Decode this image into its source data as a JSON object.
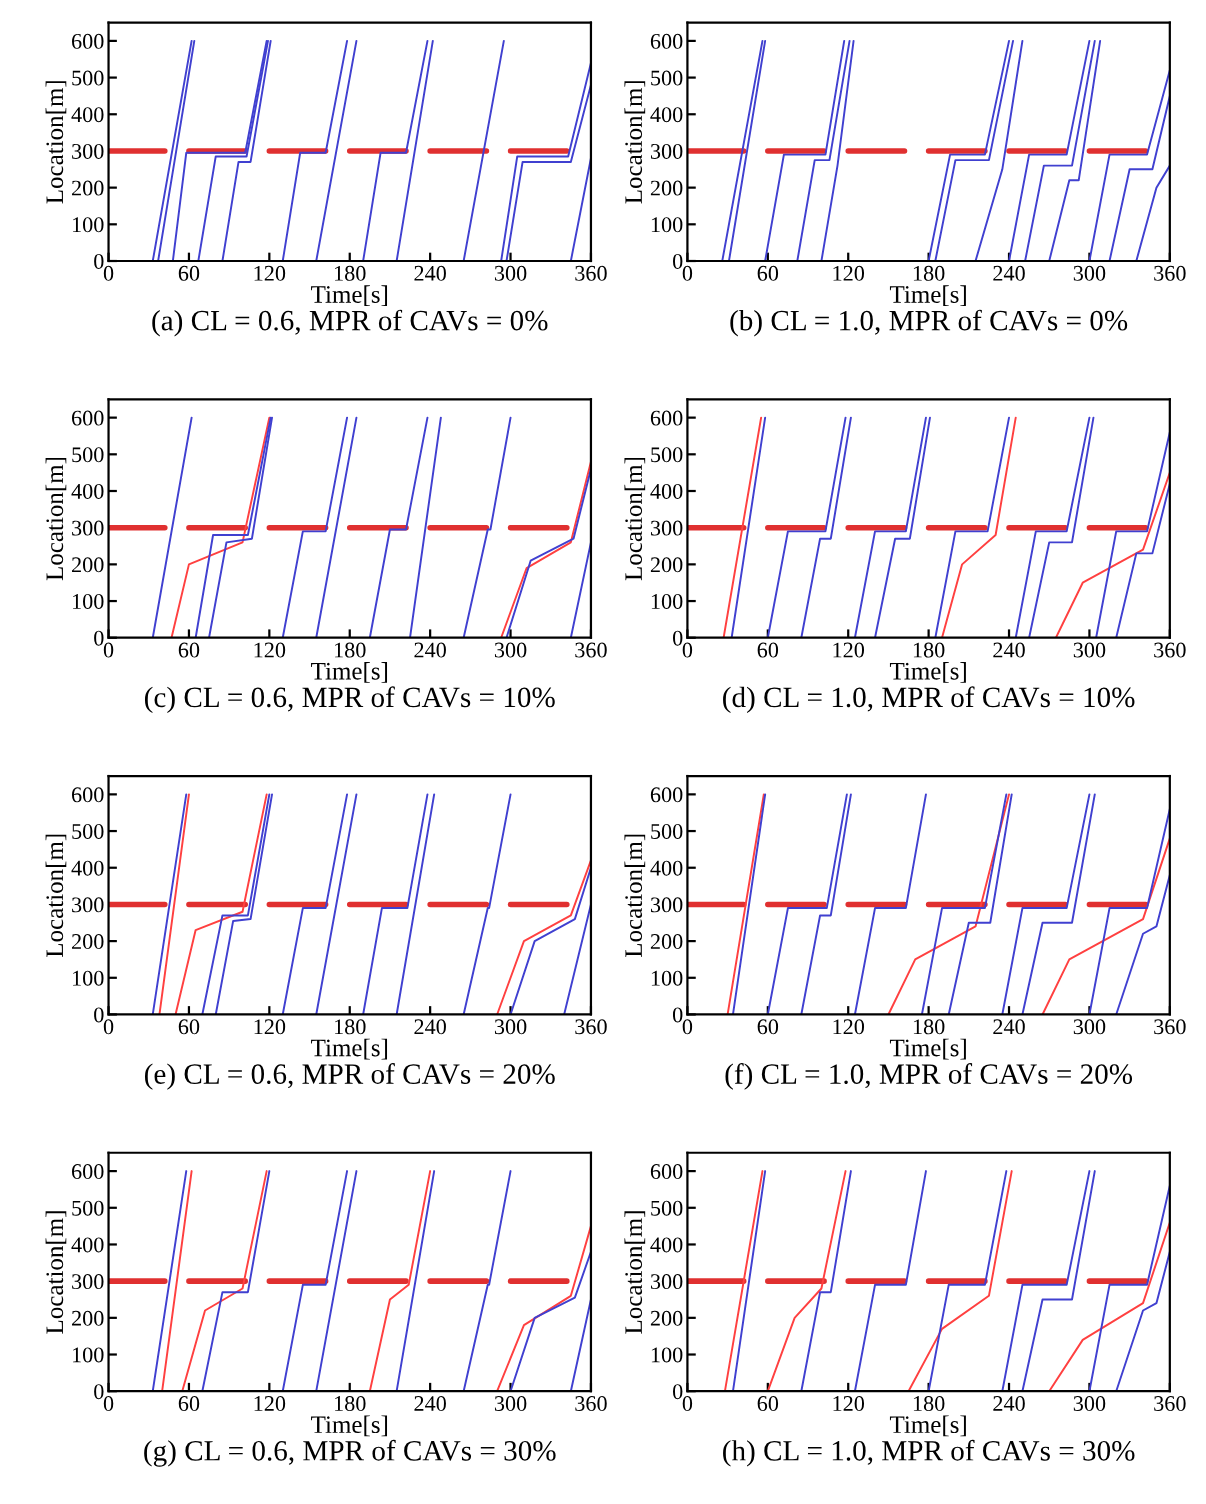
{
  "chart_data": [
    {
      "type": "line",
      "title": "(a) CL = 0.6, MPR of CAVs = 0%",
      "xlabel": "Time[s]",
      "ylabel": "Location[m]",
      "xlim": [
        0,
        360
      ],
      "xticks": [
        0,
        60,
        120,
        180,
        240,
        300,
        360
      ],
      "ylim": [
        0,
        650
      ],
      "yticks": [
        0,
        100,
        200,
        300,
        400,
        500,
        600
      ],
      "series": [
        {
          "color": "#e03030",
          "x": [
            0,
            42,
            51,
            60,
            102,
            111,
            120,
            162,
            171,
            180,
            222,
            231,
            240,
            282,
            291,
            300,
            342
          ],
          "values": [
            300,
            300,
            null,
            300,
            300,
            null,
            300,
            300,
            null,
            300,
            300,
            null,
            300,
            300,
            null,
            300,
            300
          ]
        },
        {
          "color": "#4040d0",
          "x": [
            33,
            62
          ],
          "values": [
            0,
            600
          ]
        },
        {
          "color": "#4040d0",
          "x": [
            37,
            64
          ],
          "values": [
            0,
            600
          ]
        },
        {
          "color": "#4040d0",
          "x": [
            48,
            58,
            102,
            118
          ],
          "values": [
            0,
            295,
            295,
            600
          ]
        },
        {
          "color": "#4040d0",
          "x": [
            67,
            80,
            103,
            119
          ],
          "values": [
            0,
            285,
            285,
            600
          ]
        },
        {
          "color": "#4040d0",
          "x": [
            85,
            97,
            106,
            121
          ],
          "values": [
            0,
            270,
            270,
            600
          ]
        },
        {
          "color": "#4040d0",
          "x": [
            130,
            143,
            162,
            178
          ],
          "values": [
            0,
            295,
            295,
            600
          ]
        },
        {
          "color": "#4040d0",
          "x": [
            155,
            185
          ],
          "values": [
            0,
            600
          ]
        },
        {
          "color": "#4040d0",
          "x": [
            190,
            203,
            222,
            238
          ],
          "values": [
            0,
            295,
            295,
            600
          ]
        },
        {
          "color": "#4040d0",
          "x": [
            215,
            242
          ],
          "values": [
            0,
            600
          ]
        },
        {
          "color": "#4040d0",
          "x": [
            265,
            295
          ],
          "values": [
            0,
            600
          ]
        },
        {
          "color": "#4040d0",
          "x": [
            293,
            305,
            343,
            360
          ],
          "values": [
            0,
            285,
            285,
            540
          ]
        },
        {
          "color": "#4040d0",
          "x": [
            297,
            309,
            345,
            360
          ],
          "values": [
            0,
            270,
            270,
            480
          ]
        },
        {
          "color": "#4040d0",
          "x": [
            345,
            360
          ],
          "values": [
            0,
            280
          ]
        }
      ]
    },
    {
      "type": "line",
      "title": "(b) CL = 1.0, MPR of CAVs = 0%",
      "xlabel": "Time[s]",
      "ylabel": "Location[m]",
      "xlim": [
        0,
        360
      ],
      "xticks": [
        0,
        60,
        120,
        180,
        240,
        300,
        360
      ],
      "ylim": [
        0,
        650
      ],
      "yticks": [
        0,
        100,
        200,
        300,
        400,
        500,
        600
      ],
      "series": [
        {
          "color": "#e03030",
          "x": [
            0,
            42,
            51,
            60,
            102,
            111,
            120,
            162,
            171,
            180,
            222,
            231,
            240,
            282,
            291,
            300,
            342
          ],
          "values": [
            300,
            300,
            null,
            300,
            300,
            null,
            300,
            300,
            null,
            300,
            300,
            null,
            300,
            300,
            null,
            300,
            300
          ]
        },
        {
          "color": "#4040d0",
          "x": [
            26,
            56
          ],
          "values": [
            0,
            600
          ]
        },
        {
          "color": "#4040d0",
          "x": [
            31,
            58
          ],
          "values": [
            0,
            600
          ]
        },
        {
          "color": "#4040d0",
          "x": [
            58,
            72,
            103,
            117
          ],
          "values": [
            0,
            290,
            290,
            600
          ]
        },
        {
          "color": "#4040d0",
          "x": [
            82,
            95,
            106,
            121
          ],
          "values": [
            0,
            275,
            275,
            600
          ]
        },
        {
          "color": "#4040d0",
          "x": [
            100,
            112,
            124
          ],
          "values": [
            0,
            260,
            600
          ]
        },
        {
          "color": "#4040d0",
          "x": [
            180,
            196,
            222,
            240
          ],
          "values": [
            0,
            290,
            290,
            600
          ]
        },
        {
          "color": "#4040d0",
          "x": [
            185,
            200,
            225,
            243
          ],
          "values": [
            0,
            275,
            275,
            600
          ]
        },
        {
          "color": "#4040d0",
          "x": [
            215,
            235,
            250
          ],
          "values": [
            0,
            250,
            600
          ]
        },
        {
          "color": "#4040d0",
          "x": [
            240,
            255,
            283,
            300
          ],
          "values": [
            0,
            290,
            290,
            600
          ]
        },
        {
          "color": "#4040d0",
          "x": [
            252,
            266,
            287,
            304
          ],
          "values": [
            0,
            260,
            260,
            600
          ]
        },
        {
          "color": "#4040d0",
          "x": [
            270,
            285,
            292,
            308
          ],
          "values": [
            0,
            220,
            220,
            600
          ]
        },
        {
          "color": "#4040d0",
          "x": [
            300,
            315,
            343,
            360
          ],
          "values": [
            0,
            290,
            290,
            520
          ]
        },
        {
          "color": "#4040d0",
          "x": [
            315,
            330,
            347,
            360
          ],
          "values": [
            0,
            250,
            250,
            450
          ]
        },
        {
          "color": "#4040d0",
          "x": [
            335,
            350,
            360
          ],
          "values": [
            0,
            200,
            260
          ]
        }
      ]
    },
    {
      "type": "line",
      "title": "(c) CL = 0.6, MPR of CAVs = 10%",
      "xlabel": "Time[s]",
      "ylabel": "Location[m]",
      "xlim": [
        0,
        360
      ],
      "xticks": [
        0,
        60,
        120,
        180,
        240,
        300,
        360
      ],
      "ylim": [
        0,
        650
      ],
      "yticks": [
        0,
        100,
        200,
        300,
        400,
        500,
        600
      ],
      "series": [
        {
          "color": "#e03030",
          "x": [
            0,
            42,
            51,
            60,
            102,
            111,
            120,
            162,
            171,
            180,
            222,
            231,
            240,
            282,
            291,
            300,
            342
          ],
          "values": [
            300,
            300,
            null,
            300,
            300,
            null,
            300,
            300,
            null,
            300,
            300,
            null,
            300,
            300,
            null,
            300,
            300
          ]
        },
        {
          "color": "#ff4040",
          "x": [
            47,
            60,
            100,
            120
          ],
          "values": [
            0,
            200,
            260,
            600
          ]
        },
        {
          "color": "#ff4040",
          "x": [
            293,
            312,
            345,
            360
          ],
          "values": [
            0,
            190,
            260,
            480
          ]
        },
        {
          "color": "#4040d0",
          "x": [
            33,
            62
          ],
          "values": [
            0,
            600
          ]
        },
        {
          "color": "#4040d0",
          "x": [
            65,
            78,
            104,
            121
          ],
          "values": [
            0,
            280,
            280,
            600
          ]
        },
        {
          "color": "#4040d0",
          "x": [
            75,
            88,
            107,
            122
          ],
          "values": [
            0,
            260,
            270,
            600
          ]
        },
        {
          "color": "#4040d0",
          "x": [
            130,
            145,
            162,
            178
          ],
          "values": [
            0,
            290,
            290,
            600
          ]
        },
        {
          "color": "#4040d0",
          "x": [
            155,
            185
          ],
          "values": [
            0,
            600
          ]
        },
        {
          "color": "#4040d0",
          "x": [
            195,
            210,
            222,
            238
          ],
          "values": [
            0,
            295,
            295,
            600
          ]
        },
        {
          "color": "#4040d0",
          "x": [
            225,
            248
          ],
          "values": [
            0,
            600
          ]
        },
        {
          "color": "#4040d0",
          "x": [
            265,
            283,
            285,
            300
          ],
          "values": [
            0,
            295,
            295,
            600
          ]
        },
        {
          "color": "#4040d0",
          "x": [
            297,
            315,
            347,
            360
          ],
          "values": [
            0,
            210,
            270,
            460
          ]
        },
        {
          "color": "#4040d0",
          "x": [
            345,
            360
          ],
          "values": [
            0,
            260
          ]
        }
      ]
    },
    {
      "type": "line",
      "title": "(d) CL = 1.0, MPR of CAVs = 10%",
      "xlabel": "Time[s]",
      "ylabel": "Location[m]",
      "xlim": [
        0,
        360
      ],
      "xticks": [
        0,
        60,
        120,
        180,
        240,
        300,
        360
      ],
      "ylim": [
        0,
        650
      ],
      "yticks": [
        0,
        100,
        200,
        300,
        400,
        500,
        600
      ],
      "series": [
        {
          "color": "#e03030",
          "x": [
            0,
            42,
            51,
            60,
            102,
            111,
            120,
            162,
            171,
            180,
            222,
            231,
            240,
            282,
            291,
            300,
            342
          ],
          "values": [
            300,
            300,
            null,
            300,
            300,
            null,
            300,
            300,
            null,
            300,
            300,
            null,
            300,
            300,
            null,
            300,
            300
          ]
        },
        {
          "color": "#ff4040",
          "x": [
            27,
            55
          ],
          "values": [
            0,
            600
          ]
        },
        {
          "color": "#ff4040",
          "x": [
            190,
            205,
            230,
            245
          ],
          "values": [
            0,
            200,
            280,
            600
          ]
        },
        {
          "color": "#ff4040",
          "x": [
            275,
            295,
            340,
            360
          ],
          "values": [
            0,
            150,
            240,
            450
          ]
        },
        {
          "color": "#4040d0",
          "x": [
            33,
            58
          ],
          "values": [
            0,
            600
          ]
        },
        {
          "color": "#4040d0",
          "x": [
            60,
            75,
            103,
            118
          ],
          "values": [
            0,
            290,
            290,
            600
          ]
        },
        {
          "color": "#4040d0",
          "x": [
            85,
            99,
            107,
            122
          ],
          "values": [
            0,
            270,
            270,
            600
          ]
        },
        {
          "color": "#4040d0",
          "x": [
            125,
            140,
            163,
            178
          ],
          "values": [
            0,
            290,
            290,
            600
          ]
        },
        {
          "color": "#4040d0",
          "x": [
            140,
            155,
            166,
            181
          ],
          "values": [
            0,
            270,
            270,
            600
          ]
        },
        {
          "color": "#4040d0",
          "x": [
            185,
            200,
            224,
            240
          ],
          "values": [
            0,
            290,
            290,
            600
          ]
        },
        {
          "color": "#4040d0",
          "x": [
            245,
            260,
            283,
            300
          ],
          "values": [
            0,
            290,
            290,
            600
          ]
        },
        {
          "color": "#4040d0",
          "x": [
            255,
            270,
            287,
            303
          ],
          "values": [
            0,
            260,
            260,
            600
          ]
        },
        {
          "color": "#4040d0",
          "x": [
            305,
            320,
            343,
            360
          ],
          "values": [
            0,
            290,
            290,
            560
          ]
        },
        {
          "color": "#4040d0",
          "x": [
            320,
            335,
            347,
            360
          ],
          "values": [
            0,
            230,
            230,
            420
          ]
        }
      ]
    },
    {
      "type": "line",
      "title": "(e) CL = 0.6, MPR of CAVs = 20%",
      "xlabel": "Time[s]",
      "ylabel": "Location[m]",
      "xlim": [
        0,
        360
      ],
      "xticks": [
        0,
        60,
        120,
        180,
        240,
        300,
        360
      ],
      "ylim": [
        0,
        650
      ],
      "yticks": [
        0,
        100,
        200,
        300,
        400,
        500,
        600
      ],
      "series": [
        {
          "color": "#e03030",
          "x": [
            0,
            42,
            51,
            60,
            102,
            111,
            120,
            162,
            171,
            180,
            222,
            231,
            240,
            282,
            291,
            300,
            342
          ],
          "values": [
            300,
            300,
            null,
            300,
            300,
            null,
            300,
            300,
            null,
            300,
            300,
            null,
            300,
            300,
            null,
            300,
            300
          ]
        },
        {
          "color": "#ff4040",
          "x": [
            38,
            60
          ],
          "values": [
            0,
            600
          ]
        },
        {
          "color": "#ff4040",
          "x": [
            50,
            65,
            100,
            118
          ],
          "values": [
            0,
            230,
            280,
            600
          ]
        },
        {
          "color": "#ff4040",
          "x": [
            290,
            310,
            345,
            360
          ],
          "values": [
            0,
            200,
            270,
            420
          ]
        },
        {
          "color": "#4040d0",
          "x": [
            33,
            58
          ],
          "values": [
            0,
            600
          ]
        },
        {
          "color": "#4040d0",
          "x": [
            70,
            85,
            104,
            120
          ],
          "values": [
            0,
            270,
            270,
            600
          ]
        },
        {
          "color": "#4040d0",
          "x": [
            80,
            93,
            106,
            122
          ],
          "values": [
            0,
            255,
            260,
            600
          ]
        },
        {
          "color": "#4040d0",
          "x": [
            130,
            145,
            162,
            178
          ],
          "values": [
            0,
            290,
            290,
            600
          ]
        },
        {
          "color": "#4040d0",
          "x": [
            155,
            185
          ],
          "values": [
            0,
            600
          ]
        },
        {
          "color": "#4040d0",
          "x": [
            190,
            204,
            223,
            238
          ],
          "values": [
            0,
            290,
            290,
            600
          ]
        },
        {
          "color": "#4040d0",
          "x": [
            215,
            243
          ],
          "values": [
            0,
            600
          ]
        },
        {
          "color": "#4040d0",
          "x": [
            265,
            283,
            284,
            300
          ],
          "values": [
            0,
            290,
            290,
            600
          ]
        },
        {
          "color": "#4040d0",
          "x": [
            300,
            318,
            348,
            360
          ],
          "values": [
            0,
            200,
            260,
            400
          ]
        },
        {
          "color": "#4040d0",
          "x": [
            340,
            360
          ],
          "values": [
            0,
            300
          ]
        }
      ]
    },
    {
      "type": "line",
      "title": "(f) CL = 1.0, MPR of CAVs = 20%",
      "xlabel": "Time[s]",
      "ylabel": "Location[m]",
      "xlim": [
        0,
        360
      ],
      "xticks": [
        0,
        60,
        120,
        180,
        240,
        300,
        360
      ],
      "ylim": [
        0,
        650
      ],
      "yticks": [
        0,
        100,
        200,
        300,
        400,
        500,
        600
      ],
      "series": [
        {
          "color": "#e03030",
          "x": [
            0,
            42,
            51,
            60,
            102,
            111,
            120,
            162,
            171,
            180,
            222,
            231,
            240,
            282,
            291,
            300,
            342
          ],
          "values": [
            300,
            300,
            null,
            300,
            300,
            null,
            300,
            300,
            null,
            300,
            300,
            null,
            300,
            300,
            null,
            300,
            300
          ]
        },
        {
          "color": "#ff4040",
          "x": [
            30,
            57
          ],
          "values": [
            0,
            600
          ]
        },
        {
          "color": "#ff4040",
          "x": [
            150,
            170,
            215,
            240
          ],
          "values": [
            0,
            150,
            240,
            600
          ]
        },
        {
          "color": "#ff4040",
          "x": [
            265,
            285,
            340,
            360
          ],
          "values": [
            0,
            150,
            260,
            480
          ]
        },
        {
          "color": "#4040d0",
          "x": [
            34,
            58
          ],
          "values": [
            0,
            600
          ]
        },
        {
          "color": "#4040d0",
          "x": [
            60,
            75,
            104,
            119
          ],
          "values": [
            0,
            290,
            290,
            600
          ]
        },
        {
          "color": "#4040d0",
          "x": [
            85,
            99,
            107,
            122
          ],
          "values": [
            0,
            270,
            270,
            600
          ]
        },
        {
          "color": "#4040d0",
          "x": [
            125,
            140,
            163,
            178
          ],
          "values": [
            0,
            290,
            290,
            600
          ]
        },
        {
          "color": "#4040d0",
          "x": [
            175,
            190,
            222,
            238
          ],
          "values": [
            0,
            290,
            290,
            600
          ]
        },
        {
          "color": "#4040d0",
          "x": [
            195,
            210,
            226,
            242
          ],
          "values": [
            0,
            250,
            250,
            600
          ]
        },
        {
          "color": "#4040d0",
          "x": [
            235,
            250,
            283,
            300
          ],
          "values": [
            0,
            290,
            290,
            600
          ]
        },
        {
          "color": "#4040d0",
          "x": [
            250,
            265,
            287,
            304
          ],
          "values": [
            0,
            250,
            250,
            600
          ]
        },
        {
          "color": "#4040d0",
          "x": [
            300,
            315,
            343,
            360
          ],
          "values": [
            0,
            290,
            290,
            560
          ]
        },
        {
          "color": "#4040d0",
          "x": [
            320,
            340,
            350,
            360
          ],
          "values": [
            0,
            220,
            240,
            380
          ]
        }
      ]
    },
    {
      "type": "line",
      "title": "(g) CL = 0.6, MPR of CAVs = 30%",
      "xlabel": "Time[s]",
      "ylabel": "Location[m]",
      "xlim": [
        0,
        360
      ],
      "xticks": [
        0,
        60,
        120,
        180,
        240,
        300,
        360
      ],
      "ylim": [
        0,
        650
      ],
      "yticks": [
        0,
        100,
        200,
        300,
        400,
        500,
        600
      ],
      "series": [
        {
          "color": "#e03030",
          "x": [
            0,
            42,
            51,
            60,
            102,
            111,
            120,
            162,
            171,
            180,
            222,
            231,
            240,
            282,
            291,
            300,
            342
          ],
          "values": [
            300,
            300,
            null,
            300,
            300,
            null,
            300,
            300,
            null,
            300,
            300,
            null,
            300,
            300,
            null,
            300,
            300
          ]
        },
        {
          "color": "#ff4040",
          "x": [
            40,
            62
          ],
          "values": [
            0,
            600
          ]
        },
        {
          "color": "#ff4040",
          "x": [
            55,
            72,
            100,
            118
          ],
          "values": [
            0,
            220,
            280,
            600
          ]
        },
        {
          "color": "#ff4040",
          "x": [
            195,
            210,
            224,
            240
          ],
          "values": [
            0,
            250,
            290,
            600
          ]
        },
        {
          "color": "#ff4040",
          "x": [
            290,
            310,
            345,
            360
          ],
          "values": [
            0,
            180,
            260,
            450
          ]
        },
        {
          "color": "#4040d0",
          "x": [
            33,
            58
          ],
          "values": [
            0,
            600
          ]
        },
        {
          "color": "#4040d0",
          "x": [
            70,
            85,
            104,
            120
          ],
          "values": [
            0,
            270,
            270,
            600
          ]
        },
        {
          "color": "#4040d0",
          "x": [
            130,
            145,
            162,
            178
          ],
          "values": [
            0,
            290,
            290,
            600
          ]
        },
        {
          "color": "#4040d0",
          "x": [
            155,
            185
          ],
          "values": [
            0,
            600
          ]
        },
        {
          "color": "#4040d0",
          "x": [
            215,
            243
          ],
          "values": [
            0,
            600
          ]
        },
        {
          "color": "#4040d0",
          "x": [
            265,
            283,
            284,
            300
          ],
          "values": [
            0,
            290,
            290,
            600
          ]
        },
        {
          "color": "#4040d0",
          "x": [
            300,
            318,
            348,
            360
          ],
          "values": [
            0,
            200,
            255,
            380
          ]
        },
        {
          "color": "#4040d0",
          "x": [
            345,
            360
          ],
          "values": [
            0,
            250
          ]
        }
      ]
    },
    {
      "type": "line",
      "title": "(h) CL = 1.0, MPR of CAVs = 30%",
      "xlabel": "Time[s]",
      "ylabel": "Location[m]",
      "xlim": [
        0,
        360
      ],
      "xticks": [
        0,
        60,
        120,
        180,
        240,
        300,
        360
      ],
      "ylim": [
        0,
        650
      ],
      "yticks": [
        0,
        100,
        200,
        300,
        400,
        500,
        600
      ],
      "series": [
        {
          "color": "#e03030",
          "x": [
            0,
            42,
            51,
            60,
            102,
            111,
            120,
            162,
            171,
            180,
            222,
            231,
            240,
            282,
            291,
            300,
            342
          ],
          "values": [
            300,
            300,
            null,
            300,
            300,
            null,
            300,
            300,
            null,
            300,
            300,
            null,
            300,
            300,
            null,
            300,
            300
          ]
        },
        {
          "color": "#ff4040",
          "x": [
            28,
            56
          ],
          "values": [
            0,
            600
          ]
        },
        {
          "color": "#ff4040",
          "x": [
            60,
            80,
            100,
            118
          ],
          "values": [
            0,
            200,
            280,
            600
          ]
        },
        {
          "color": "#ff4040",
          "x": [
            165,
            190,
            225,
            242
          ],
          "values": [
            0,
            170,
            260,
            600
          ]
        },
        {
          "color": "#ff4040",
          "x": [
            270,
            295,
            340,
            360
          ],
          "values": [
            0,
            140,
            240,
            460
          ]
        },
        {
          "color": "#4040d0",
          "x": [
            34,
            58
          ],
          "values": [
            0,
            600
          ]
        },
        {
          "color": "#4040d0",
          "x": [
            85,
            99,
            107,
            122
          ],
          "values": [
            0,
            270,
            270,
            600
          ]
        },
        {
          "color": "#4040d0",
          "x": [
            125,
            140,
            163,
            178
          ],
          "values": [
            0,
            290,
            290,
            600
          ]
        },
        {
          "color": "#4040d0",
          "x": [
            180,
            195,
            222,
            238
          ],
          "values": [
            0,
            290,
            290,
            600
          ]
        },
        {
          "color": "#4040d0",
          "x": [
            235,
            250,
            283,
            300
          ],
          "values": [
            0,
            290,
            290,
            600
          ]
        },
        {
          "color": "#4040d0",
          "x": [
            250,
            265,
            287,
            304
          ],
          "values": [
            0,
            250,
            250,
            600
          ]
        },
        {
          "color": "#4040d0",
          "x": [
            300,
            315,
            343,
            360
          ],
          "values": [
            0,
            290,
            290,
            560
          ]
        },
        {
          "color": "#4040d0",
          "x": [
            320,
            340,
            350,
            360
          ],
          "values": [
            0,
            220,
            240,
            380
          ]
        }
      ]
    }
  ]
}
